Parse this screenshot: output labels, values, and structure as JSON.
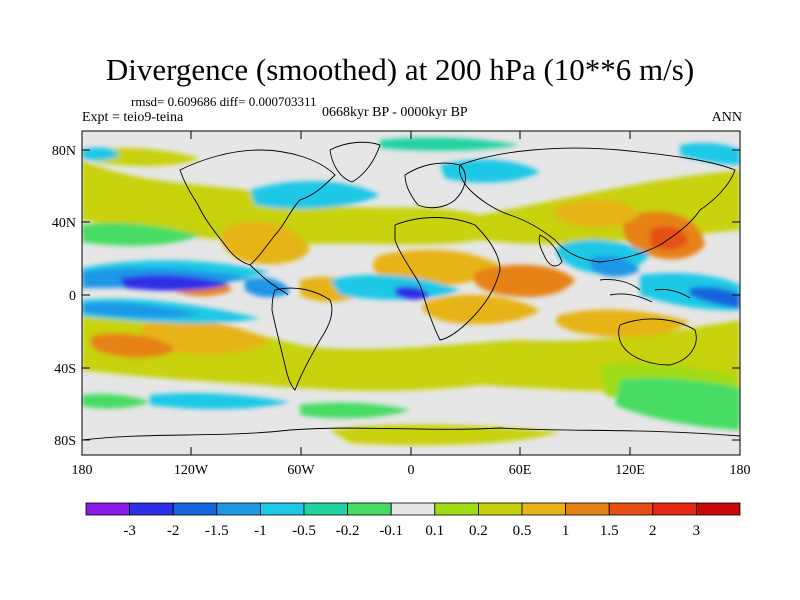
{
  "title": "Divergence (smoothed) at 200 hPa (10**6 m/s)",
  "stats": "rmsd= 0.609686 diff= 0.000703311",
  "experiment": "Expt = teio9-teina",
  "period": "0668kyr BP - 0000kyr BP",
  "season": "ANN",
  "lat_ticks": [
    "80N",
    "40N",
    "0",
    "40S",
    "80S"
  ],
  "lon_ticks": [
    "180",
    "120W",
    "60W",
    "0",
    "60E",
    "120E",
    "180"
  ],
  "colorbar": {
    "labels": [
      "-3",
      "-2",
      "-1.5",
      "-1",
      "-0.5",
      "-0.2",
      "-0.1",
      "0.1",
      "0.2",
      "0.5",
      "1",
      "1.5",
      "2",
      "3"
    ],
    "colors": [
      "#8a1ae6",
      "#2e2ee6",
      "#1464dc",
      "#1e96e6",
      "#1ec8e6",
      "#22d2a0",
      "#46dc64",
      "#e6e6e6",
      "#a0dc14",
      "#c8d20a",
      "#e6b414",
      "#e68214",
      "#e65014",
      "#e62814",
      "#c80a0a"
    ]
  },
  "colors": {
    "neutral": "#e6e6e6",
    "land_outline": "#000000"
  }
}
